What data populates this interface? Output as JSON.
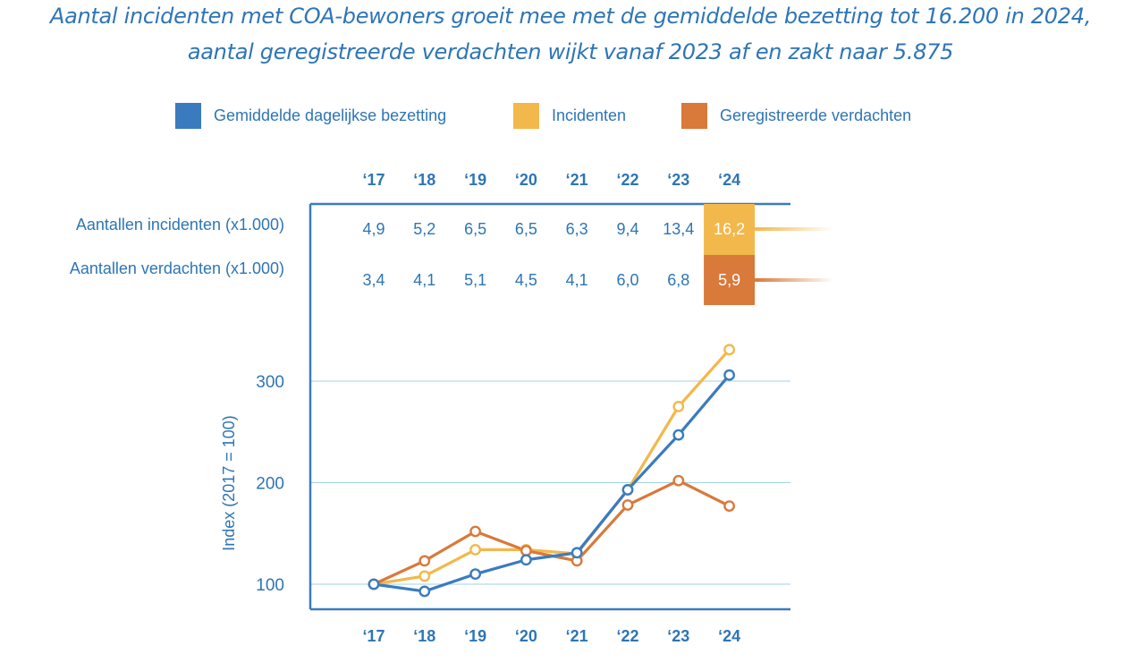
{
  "title_line1": "Aantal incidenten met COA-bewoners groeit mee met de gemiddelde bezetting tot 16.200 in 2024,",
  "title_line2": "aantal geregistreerde verdachten wijkt vanaf 2023 af en zakt naar 5.875",
  "colors": {
    "blue": "#3a7bbf",
    "yellow": "#f2b84b",
    "orange": "#d9793a",
    "text": "#2e75b6",
    "grid": "#9fd3e6"
  },
  "chart_data": {
    "type": "line",
    "x": [
      "‘17",
      "‘18",
      "‘19",
      "‘20",
      "‘21",
      "‘22",
      "‘23",
      "‘24"
    ],
    "ylabel": "Index (2017 = 100)",
    "yticks": [
      100,
      200,
      300
    ],
    "ylim": [
      80,
      345
    ],
    "grid": true,
    "legend_position": "top",
    "series": [
      {
        "name": "Gemiddelde dagelijkse bezetting",
        "color": "#3a7bbf",
        "values": [
          100,
          93,
          110,
          124,
          131,
          193,
          247,
          306
        ]
      },
      {
        "name": "Incidenten",
        "color": "#f2b84b",
        "values": [
          100,
          108,
          134,
          134,
          130,
          193,
          275,
          331
        ]
      },
      {
        "name": "Geregistreerde verdachten",
        "color": "#d9793a",
        "values": [
          100,
          123,
          152,
          133,
          123,
          178,
          202,
          177
        ]
      }
    ],
    "table": {
      "rows": [
        {
          "label": "Aantallen incidenten (x1.000)",
          "color": "#f2b84b",
          "values": [
            "4,9",
            "5,2",
            "6,5",
            "6,5",
            "6,3",
            "9,4",
            "13,4",
            "16,2"
          ]
        },
        {
          "label": "Aantallen verdachten (x1.000)",
          "color": "#d9793a",
          "values": [
            "3,4",
            "4,1",
            "5,1",
            "4,5",
            "4,1",
            "6,0",
            "6,8",
            "5,9"
          ]
        }
      ]
    }
  }
}
